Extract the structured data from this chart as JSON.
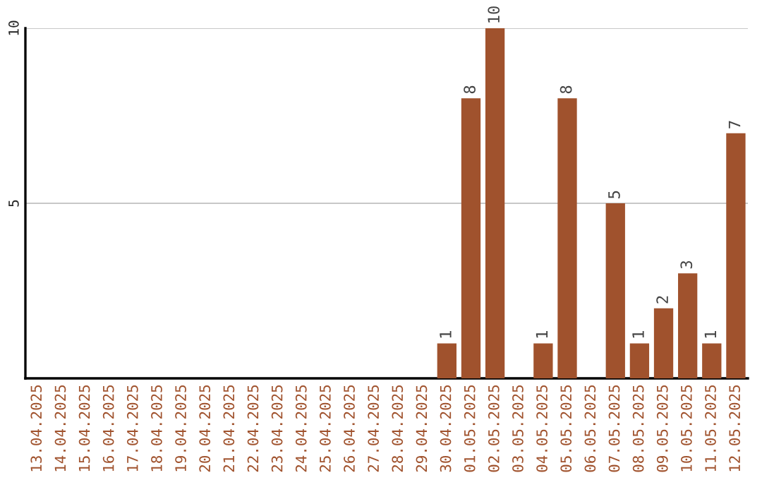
{
  "chart_data": {
    "type": "bar",
    "categories": [
      "13.04.2025",
      "14.04.2025",
      "15.04.2025",
      "16.04.2025",
      "17.04.2025",
      "18.04.2025",
      "19.04.2025",
      "20.04.2025",
      "21.04.2025",
      "22.04.2025",
      "23.04.2025",
      "24.04.2025",
      "25.04.2025",
      "26.04.2025",
      "27.04.2025",
      "28.04.2025",
      "29.04.2025",
      "30.04.2025",
      "01.05.2025",
      "02.05.2025",
      "03.05.2025",
      "04.05.2025",
      "05.05.2025",
      "06.05.2025",
      "07.05.2025",
      "08.05.2025",
      "09.05.2025",
      "10.05.2025",
      "11.05.2025",
      "12.05.2025"
    ],
    "values": [
      null,
      null,
      null,
      null,
      null,
      null,
      null,
      null,
      null,
      null,
      null,
      null,
      null,
      null,
      null,
      null,
      null,
      1,
      8,
      10,
      null,
      1,
      8,
      null,
      5,
      1,
      2,
      3,
      1,
      7
    ],
    "value_labels": [
      null,
      null,
      null,
      null,
      null,
      null,
      null,
      null,
      null,
      null,
      null,
      null,
      null,
      null,
      null,
      null,
      null,
      "1",
      "8",
      "10",
      null,
      "1",
      "8",
      null,
      "5",
      "1",
      "2",
      "3",
      "1",
      "7"
    ],
    "color": "#a0522d",
    "ylim": [
      0,
      10
    ],
    "yticks": [
      5,
      10
    ],
    "grid": "y"
  }
}
